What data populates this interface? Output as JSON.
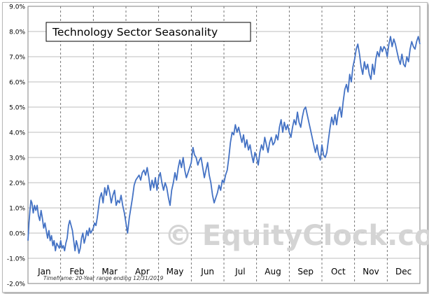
{
  "chart_data": {
    "type": "line",
    "title": "Technology Sector Seasonality",
    "xlabel": "",
    "ylabel": "",
    "footnote": "Timeframe: 20-Year range ending 12/31/2019",
    "watermark": "© EquityClock.com",
    "y_ticks": [
      "-2.0%",
      "-1.0%",
      "0.0%",
      "1.0%",
      "2.0%",
      "3.0%",
      "4.0%",
      "5.0%",
      "6.0%",
      "7.0%",
      "8.0%",
      "9.0%"
    ],
    "ylim": [
      -2,
      9
    ],
    "months": [
      "Jan",
      "Feb",
      "Mar",
      "Apr",
      "May",
      "Jun",
      "Jul",
      "Aug",
      "Sep",
      "Oct",
      "Nov",
      "Dec"
    ],
    "grid": true,
    "line_color": "#4472c4",
    "series": [
      {
        "x": [
          0,
          0.03,
          0.06,
          0.09,
          0.12,
          0.16,
          0.2,
          0.24,
          0.28,
          0.32,
          0.36,
          0.4,
          0.44,
          0.48,
          0.52,
          0.56,
          0.6,
          0.64,
          0.68,
          0.72,
          0.76,
          0.8,
          0.84,
          0.88,
          0.92,
          0.96,
          1.0,
          1.04,
          1.08,
          1.12,
          1.16,
          1.2,
          1.24,
          1.28,
          1.32,
          1.36,
          1.4,
          1.44,
          1.48,
          1.52,
          1.56,
          1.6,
          1.64,
          1.68,
          1.72,
          1.76,
          1.8,
          1.84,
          1.88,
          1.92,
          1.96,
          2.0,
          2.04,
          2.08,
          2.12,
          2.16,
          2.2,
          2.25,
          2.3,
          2.35,
          2.4,
          2.45,
          2.5,
          2.55,
          2.6,
          2.65,
          2.7,
          2.75,
          2.8,
          2.85,
          2.9,
          2.95,
          3.0,
          3.05,
          3.1,
          3.15,
          3.2,
          3.25,
          3.3,
          3.35,
          3.4,
          3.45,
          3.5,
          3.55,
          3.6,
          3.65,
          3.7,
          3.75,
          3.8,
          3.85,
          3.9,
          3.95,
          4.0,
          4.05,
          4.1,
          4.15,
          4.2,
          4.25,
          4.3,
          4.35,
          4.4,
          4.45,
          4.5,
          4.55,
          4.6,
          4.65,
          4.7,
          4.75,
          4.8,
          4.85,
          4.9,
          4.95,
          5.0,
          5.05,
          5.1,
          5.15,
          5.2,
          5.25,
          5.3,
          5.35,
          5.4,
          5.45,
          5.5,
          5.55,
          5.6,
          5.65,
          5.7,
          5.75,
          5.8,
          5.85,
          5.9,
          5.95,
          6.0,
          6.05,
          6.1,
          6.15,
          6.2,
          6.25,
          6.3,
          6.35,
          6.4,
          6.45,
          6.5,
          6.55,
          6.6,
          6.65,
          6.7,
          6.75,
          6.8,
          6.85,
          6.9,
          6.95,
          7.0,
          7.05,
          7.1,
          7.15,
          7.2,
          7.25,
          7.3,
          7.35,
          7.4,
          7.45,
          7.5,
          7.55,
          7.6,
          7.65,
          7.7,
          7.75,
          7.8,
          7.85,
          7.9,
          7.95,
          8.0,
          8.05,
          8.1,
          8.15,
          8.2,
          8.25,
          8.3,
          8.35,
          8.4,
          8.45,
          8.5,
          8.55,
          8.6,
          8.65,
          8.7,
          8.75,
          8.8,
          8.85,
          8.9,
          8.95,
          9.0,
          9.05,
          9.1,
          9.15,
          9.2,
          9.25,
          9.3,
          9.35,
          9.4,
          9.45,
          9.5,
          9.55,
          9.6,
          9.65,
          9.7,
          9.75,
          9.8,
          9.85,
          9.9,
          9.95,
          10.0,
          10.05,
          10.1,
          10.15,
          10.2,
          10.25,
          10.3,
          10.35,
          10.4,
          10.45,
          10.5,
          10.55,
          10.6,
          10.65,
          10.7,
          10.75,
          10.8,
          10.85,
          10.9,
          10.95,
          11.0,
          11.05,
          11.1,
          11.15,
          11.2,
          11.25,
          11.3,
          11.35,
          11.4,
          11.45,
          11.5,
          11.55,
          11.6,
          11.65,
          11.7,
          11.75,
          11.8,
          11.85,
          11.9,
          11.95,
          12.0
        ],
        "values": [
          -0.3,
          0.4,
          0.9,
          1.3,
          1.2,
          0.8,
          1.1,
          0.9,
          1.1,
          0.7,
          0.5,
          0.9,
          0.6,
          0.2,
          0.4,
          0.1,
          -0.2,
          0.1,
          -0.3,
          -0.1,
          -0.5,
          -0.3,
          -0.7,
          -0.4,
          -0.5,
          -0.6,
          -0.3,
          -0.6,
          -0.5,
          -0.7,
          -0.4,
          -0.2,
          0.3,
          0.5,
          0.3,
          0.1,
          -0.3,
          -0.7,
          -0.3,
          -0.5,
          -0.8,
          -0.6,
          -0.2,
          0.0,
          -0.4,
          -0.2,
          0.1,
          -0.1,
          0.2,
          0.0,
          0.1,
          0.2,
          0.4,
          0.3,
          0.6,
          1.0,
          1.4,
          1.6,
          1.2,
          1.8,
          1.5,
          1.9,
          1.6,
          1.2,
          1.5,
          1.7,
          1.1,
          1.3,
          1.2,
          1.5,
          1.1,
          0.8,
          0.4,
          0.0,
          0.6,
          1.0,
          1.4,
          1.9,
          2.1,
          2.2,
          2.3,
          2.1,
          2.4,
          2.5,
          2.3,
          2.6,
          2.2,
          1.7,
          2.1,
          1.8,
          2.2,
          1.7,
          2.2,
          2.4,
          2.0,
          1.7,
          2.0,
          1.8,
          1.4,
          1.1,
          1.7,
          2.0,
          2.4,
          2.1,
          2.6,
          2.9,
          2.6,
          3.0,
          2.5,
          2.2,
          2.4,
          2.6,
          2.8,
          3.4,
          3.1,
          3.0,
          2.7,
          2.9,
          3.0,
          2.6,
          2.2,
          2.5,
          2.8,
          2.3,
          2.0,
          1.5,
          1.2,
          1.4,
          1.6,
          1.9,
          1.7,
          2.1,
          2.0,
          2.3,
          2.5,
          3.0,
          3.6,
          4.0,
          3.9,
          4.3,
          4.0,
          4.2,
          3.9,
          3.6,
          3.9,
          3.4,
          3.7,
          3.3,
          3.5,
          3.1,
          2.8,
          3.2,
          3.0,
          2.7,
          3.2,
          3.5,
          3.3,
          3.8,
          3.5,
          3.2,
          3.6,
          3.8,
          3.5,
          3.6,
          3.9,
          3.7,
          4.2,
          4.5,
          4.0,
          4.4,
          4.1,
          4.3,
          4.0,
          3.8,
          4.2,
          4.5,
          4.3,
          4.8,
          4.4,
          4.2,
          4.6,
          4.9,
          5.0,
          4.7,
          4.4,
          4.1,
          3.8,
          3.5,
          3.2,
          3.5,
          3.1,
          2.9,
          3.5,
          3.1,
          3.0,
          3.2,
          3.7,
          4.2,
          4.6,
          4.3,
          4.7,
          4.3,
          4.8,
          5.0,
          4.6,
          5.2,
          5.7,
          5.9,
          5.6,
          6.3,
          6.0,
          6.6,
          6.9,
          7.3,
          7.5,
          7.1,
          6.6,
          6.3,
          6.8,
          6.5,
          6.7,
          6.3,
          6.1,
          6.7,
          6.3,
          6.9,
          7.2,
          7.0,
          7.4,
          7.2,
          7.4,
          7.3,
          7.0,
          7.5,
          7.8,
          7.4,
          7.7,
          7.5,
          7.2,
          6.9,
          6.7,
          7.1,
          6.7,
          6.6,
          7.0,
          6.8,
          7.3,
          7.6,
          7.4,
          7.3,
          7.6,
          7.8,
          7.5
        ]
      }
    ]
  }
}
